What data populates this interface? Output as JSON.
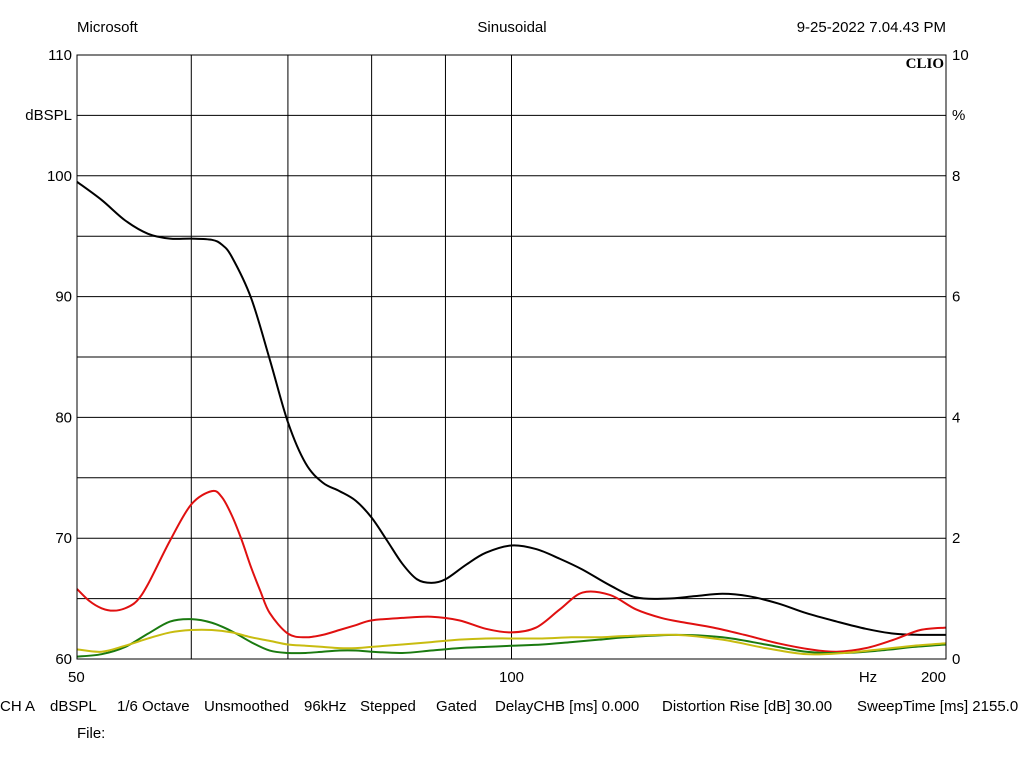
{
  "header": {
    "left": "Microsoft",
    "center": "Sinusoidal",
    "right": "9-25-2022 7.04.43 PM",
    "brand": "CLIO"
  },
  "footer": {
    "settings": [
      "CH A",
      "dBSPL",
      "1/6 Octave",
      "Unsmoothed",
      "96kHz",
      "Stepped",
      "Gated",
      "DelayCHB [ms] 0.000",
      "Distortion Rise [dB] 30.00",
      "SweepTime [ms] 2155.0"
    ],
    "file_label": "File:"
  },
  "chart_data": {
    "type": "line",
    "title": "Sinusoidal",
    "x_scale": "log",
    "xlim": [
      50,
      200
    ],
    "x_ticks": [
      "50",
      "100",
      "200"
    ],
    "x_unit": "Hz",
    "ylim_left": [
      60,
      110
    ],
    "y_ticks_left": [
      "60",
      "70",
      "80",
      "90",
      "100",
      "110"
    ],
    "y_unit_left": "dBSPL",
    "ylim_right": [
      0,
      10
    ],
    "y_ticks_right": [
      "0",
      "2",
      "4",
      "6",
      "8",
      "10"
    ],
    "y_unit_right": "%",
    "grid": true,
    "series": [
      {
        "color": "#000000",
        "axis": "left",
        "x": [
          50,
          52,
          54,
          56,
          58,
          60,
          62,
          63,
          64,
          66,
          68,
          70,
          72,
          74,
          76,
          78,
          80,
          82,
          84,
          86,
          88,
          90,
          93,
          96,
          100,
          104,
          108,
          112,
          117,
          122,
          128,
          134,
          140,
          146,
          153,
          160,
          168,
          176,
          184,
          192,
          200
        ],
        "y": [
          99.5,
          98.0,
          96.3,
          95.2,
          94.8,
          94.8,
          94.7,
          94.3,
          93.3,
          89.9,
          84.8,
          79.6,
          76.2,
          74.6,
          73.9,
          73.1,
          71.7,
          69.8,
          67.9,
          66.6,
          66.3,
          66.6,
          67.8,
          68.8,
          69.4,
          69.1,
          68.3,
          67.4,
          66.1,
          65.1,
          65.0,
          65.2,
          65.4,
          65.2,
          64.6,
          63.8,
          63.1,
          62.5,
          62.1,
          62.0,
          62.0
        ]
      },
      {
        "color": "#e01010",
        "axis": "left",
        "x": [
          50,
          51,
          52,
          53,
          54,
          55,
          56,
          58,
          60,
          62,
          63,
          64,
          65,
          66,
          67,
          68,
          70,
          72,
          74,
          76,
          78,
          80,
          84,
          88,
          92,
          96,
          100,
          104,
          108,
          112,
          117,
          122,
          127,
          132,
          138,
          145,
          153,
          161,
          168,
          176,
          184,
          192,
          200
        ],
        "y": [
          65.8,
          64.8,
          64.2,
          64.0,
          64.2,
          64.8,
          66.2,
          69.8,
          72.8,
          73.9,
          73.4,
          71.9,
          69.9,
          67.6,
          65.6,
          63.8,
          62.1,
          61.8,
          62.0,
          62.4,
          62.8,
          63.2,
          63.4,
          63.5,
          63.2,
          62.5,
          62.2,
          62.6,
          64.1,
          65.5,
          65.3,
          64.1,
          63.4,
          63.0,
          62.6,
          62.0,
          61.3,
          60.8,
          60.6,
          60.9,
          61.6,
          62.4,
          62.6
        ]
      },
      {
        "color": "#1a7a10",
        "axis": "left",
        "x": [
          50,
          52,
          54,
          56,
          58,
          60,
          62,
          64,
          66,
          68,
          70,
          72,
          74,
          76,
          78,
          80,
          84,
          88,
          92,
          96,
          100,
          105,
          110,
          115,
          120,
          130,
          140,
          150,
          160,
          170,
          180,
          190,
          200
        ],
        "y": [
          60.2,
          60.4,
          61.0,
          62.1,
          63.1,
          63.3,
          63.0,
          62.3,
          61.4,
          60.7,
          60.5,
          60.5,
          60.6,
          60.7,
          60.7,
          60.6,
          60.5,
          60.7,
          60.9,
          61.0,
          61.1,
          61.2,
          61.4,
          61.6,
          61.8,
          62.0,
          61.8,
          61.2,
          60.6,
          60.5,
          60.7,
          61.0,
          61.2
        ]
      },
      {
        "color": "#c8bc10",
        "axis": "left",
        "x": [
          50,
          52,
          54,
          56,
          58,
          60,
          62,
          64,
          66,
          68,
          70,
          72,
          74,
          76,
          78,
          80,
          84,
          88,
          92,
          96,
          100,
          105,
          110,
          115,
          120,
          130,
          140,
          150,
          160,
          170,
          180,
          190,
          200
        ],
        "y": [
          60.8,
          60.6,
          61.1,
          61.7,
          62.2,
          62.4,
          62.4,
          62.2,
          61.8,
          61.5,
          61.2,
          61.1,
          61.0,
          60.9,
          60.9,
          61.0,
          61.2,
          61.4,
          61.6,
          61.7,
          61.7,
          61.7,
          61.8,
          61.8,
          61.9,
          62.0,
          61.6,
          60.9,
          60.4,
          60.5,
          60.8,
          61.1,
          61.3
        ]
      }
    ]
  }
}
